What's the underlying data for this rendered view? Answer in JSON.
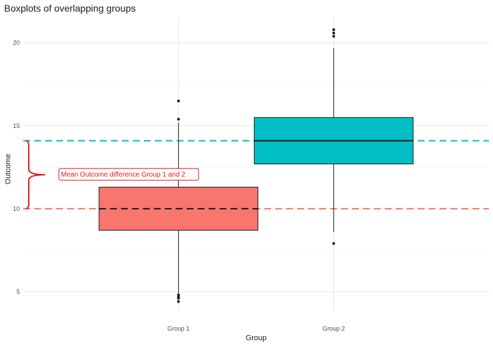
{
  "chart_data": {
    "type": "boxplot",
    "title": "Boxplots of overlapping groups",
    "xlabel": "Group",
    "ylabel": "Outcome",
    "categories": [
      "Group 1",
      "Group 2"
    ],
    "ylim": [
      3.8,
      21.6
    ],
    "yticks": [
      5,
      10,
      15,
      20
    ],
    "yticklabels": [
      "5",
      "10",
      "15",
      "20"
    ],
    "grid": true,
    "boxes": [
      {
        "name": "Group 1",
        "color": "#F8766D",
        "q1": 8.7,
        "median": 10.0,
        "q3": 11.3,
        "whisker_low": 4.9,
        "whisker_high": 15.2,
        "outliers": [
          16.5,
          15.4,
          4.8,
          4.7,
          4.6,
          4.4
        ]
      },
      {
        "name": "Group 2",
        "color": "#00BFC4",
        "q1": 12.7,
        "median": 14.1,
        "q3": 15.5,
        "whisker_low": 8.6,
        "whisker_high": 19.7,
        "outliers": [
          20.8,
          20.6,
          20.4,
          7.9
        ]
      }
    ],
    "mean_lines": [
      {
        "group": "Group 1",
        "value": 10.0,
        "color": "#F8766D"
      },
      {
        "group": "Group 2",
        "value": 14.1,
        "color": "#00BFC4"
      }
    ],
    "annotation": {
      "text": "Mean Outcome difference Group 1 and 2",
      "color": "#e31a1c",
      "from": 10.0,
      "to": 14.1
    }
  }
}
